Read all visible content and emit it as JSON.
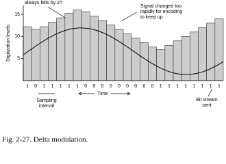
{
  "chart_data": {
    "type": "bar",
    "caption": "Fig. 2-27. Delta modulation.",
    "y_label": "Digitization levels",
    "x_label": "Time",
    "annotations": [
      "always falls by 2?",
      "Signal changed too",
      "rapidly for encoding",
      "to keep up",
      "Sampling",
      "interval",
      "Bit stream",
      "sent"
    ],
    "categories": [
      "1",
      "0",
      "1",
      "1",
      "1",
      "1",
      "1",
      "0",
      "0",
      "0",
      "0",
      "0",
      "0",
      "0",
      "0",
      "0",
      "1",
      "1",
      "1",
      "1",
      "1",
      "1",
      "1",
      "1"
    ],
    "values": [
      12.2,
      11.6,
      12.2,
      13.2,
      14.2,
      15.2,
      16.0,
      15.6,
      14.6,
      13.6,
      12.6,
      11.6,
      10.6,
      9.6,
      8.6,
      7.6,
      7.0,
      8.0,
      9.0,
      10.0,
      11.0,
      12.0,
      13.0,
      14.0
    ],
    "color": "#cccccc",
    "ylim": [
      0,
      17
    ],
    "yticks": [
      5,
      10,
      15
    ]
  }
}
